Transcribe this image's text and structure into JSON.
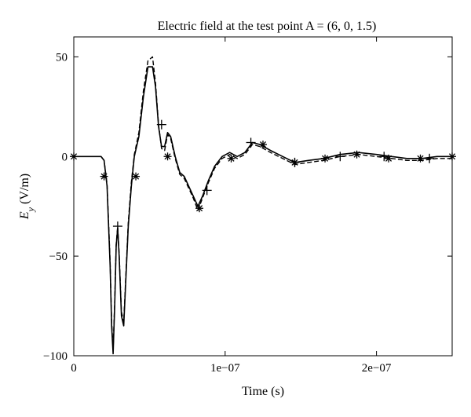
{
  "chart_data": {
    "type": "line",
    "title": "Electric field at the test point A = (6, 0, 1.5)",
    "xlabel": "Time (s)",
    "ylabel": "E_y (V/m)",
    "ylabel_main": "E",
    "ylabel_sub": "y",
    "ylabel_unit": " (V/m)",
    "xlim": [
      0,
      2.5e-07
    ],
    "ylim": [
      -100,
      60
    ],
    "grid": false,
    "x_ticks": [
      {
        "value": 0,
        "label": "0"
      },
      {
        "value": 1e-07,
        "label": "1e−07"
      },
      {
        "value": 2e-07,
        "label": "2e−07"
      }
    ],
    "y_ticks": [
      {
        "value": 50,
        "label": "50"
      },
      {
        "value": 0,
        "label": "0"
      },
      {
        "value": -50,
        "label": "−50"
      },
      {
        "value": -100,
        "label": "−100"
      }
    ],
    "series": [
      {
        "style": "solid",
        "x": [
          0,
          1.8e-08,
          2e-08,
          2.2e-08,
          2.4e-08,
          2.5e-08,
          2.6e-08,
          2.7e-08,
          2.8e-08,
          2.9e-08,
          3e-08,
          3.15e-08,
          3.3e-08,
          3.45e-08,
          3.6e-08,
          3.8e-08,
          4e-08,
          4.3e-08,
          4.6e-08,
          4.9e-08,
          5.2e-08,
          5.4e-08,
          5.6e-08,
          5.8e-08,
          6e-08,
          6.2e-08,
          6.4e-08,
          6.7e-08,
          7e-08,
          7.3e-08,
          7.6e-08,
          7.9e-08,
          8.2e-08,
          8.5e-08,
          8.9e-08,
          9.3e-08,
          9.8e-08,
          1.03e-07,
          1.08e-07,
          1.13e-07,
          1.18e-07,
          1.23e-07,
          1.3e-07,
          1.38e-07,
          1.46e-07,
          1.55e-07,
          1.65e-07,
          1.76e-07,
          1.88e-07,
          2e-07,
          2.1e-07,
          2.2e-07,
          2.3e-07,
          2.4e-07,
          2.5e-07
        ],
        "y": [
          0,
          0,
          -2,
          -15,
          -55,
          -85,
          -99,
          -75,
          -45,
          -36,
          -50,
          -80,
          -85,
          -60,
          -35,
          -15,
          0,
          10,
          30,
          45,
          45,
          35,
          15,
          5,
          5,
          12,
          10,
          0,
          -8,
          -10,
          -15,
          -20,
          -25,
          -20,
          -12,
          -5,
          0,
          2,
          0,
          2,
          7,
          6,
          3,
          0,
          -3,
          -2,
          -1,
          1,
          2,
          1,
          0,
          -1,
          -1,
          0,
          0
        ]
      },
      {
        "style": "dashed",
        "x": [
          0,
          1.8e-08,
          2e-08,
          2.2e-08,
          2.4e-08,
          2.5e-08,
          2.6e-08,
          2.7e-08,
          2.8e-08,
          2.9e-08,
          3e-08,
          3.15e-08,
          3.3e-08,
          3.45e-08,
          3.6e-08,
          3.8e-08,
          4e-08,
          4.3e-08,
          4.6e-08,
          4.9e-08,
          5.2e-08,
          5.4e-08,
          5.6e-08,
          5.8e-08,
          6e-08,
          6.2e-08,
          6.4e-08,
          6.7e-08,
          7e-08,
          7.3e-08,
          7.6e-08,
          7.9e-08,
          8.2e-08,
          8.5e-08,
          8.9e-08,
          9.3e-08,
          9.8e-08,
          1.03e-07,
          1.08e-07,
          1.13e-07,
          1.18e-07,
          1.23e-07,
          1.3e-07,
          1.38e-07,
          1.46e-07,
          1.55e-07,
          1.65e-07,
          1.76e-07,
          1.88e-07,
          2e-07,
          2.1e-07,
          2.2e-07,
          2.3e-07,
          2.4e-07,
          2.5e-07
        ],
        "y": [
          0,
          0,
          -2,
          -14,
          -53,
          -83,
          -97,
          -73,
          -44,
          -35,
          -49,
          -78,
          -83,
          -58,
          -33,
          -13,
          1,
          12,
          33,
          48,
          50,
          37,
          16,
          4,
          3,
          11,
          9,
          -1,
          -9,
          -11,
          -16,
          -21,
          -27,
          -21,
          -13,
          -6,
          -1,
          1,
          -1,
          1,
          6,
          5,
          2,
          -1,
          -4,
          -3,
          -2,
          0,
          1,
          0,
          -1,
          -2,
          -2,
          -1,
          -1
        ]
      },
      {
        "style": "star-markers",
        "x": [
          0,
          2e-08,
          4.1e-08,
          6.2e-08,
          8.3e-08,
          1.04e-07,
          1.25e-07,
          1.46e-07,
          1.66e-07,
          1.87e-07,
          2.08e-07,
          2.29e-07,
          2.5e-07
        ],
        "y": [
          0,
          -10,
          -10,
          0,
          -26,
          -1,
          6,
          -3,
          -1,
          1,
          -1,
          -1,
          0
        ]
      },
      {
        "style": "plus-markers",
        "x": [
          2.9e-08,
          5.8e-08,
          8.8e-08,
          1.17e-07,
          1.46e-07,
          1.76e-07,
          2.05e-07,
          2.35e-07
        ],
        "y": [
          -35,
          16,
          -17,
          7,
          -3,
          0,
          0,
          -1
        ]
      }
    ]
  }
}
